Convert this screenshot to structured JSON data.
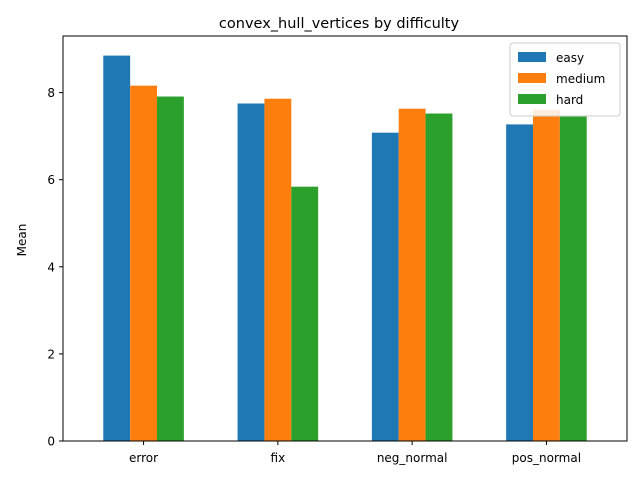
{
  "chart_data": {
    "type": "bar",
    "title": "convex_hull_vertices by difficulty",
    "xlabel": "",
    "ylabel": "Mean",
    "categories": [
      "error",
      "fix",
      "neg_normal",
      "pos_normal"
    ],
    "series": [
      {
        "name": "easy",
        "color": "#1f77b4",
        "values": [
          8.85,
          7.75,
          7.08,
          7.27
        ]
      },
      {
        "name": "medium",
        "color": "#ff7f0e",
        "values": [
          8.16,
          7.86,
          7.63,
          7.6
        ]
      },
      {
        "name": "hard",
        "color": "#2ca02c",
        "values": [
          7.91,
          5.84,
          7.52,
          7.45
        ]
      }
    ],
    "ylim": [
      0,
      9.3
    ],
    "yticks": [
      "0",
      "2",
      "4",
      "6",
      "8"
    ],
    "grid": false,
    "legend_position": "top-right"
  }
}
